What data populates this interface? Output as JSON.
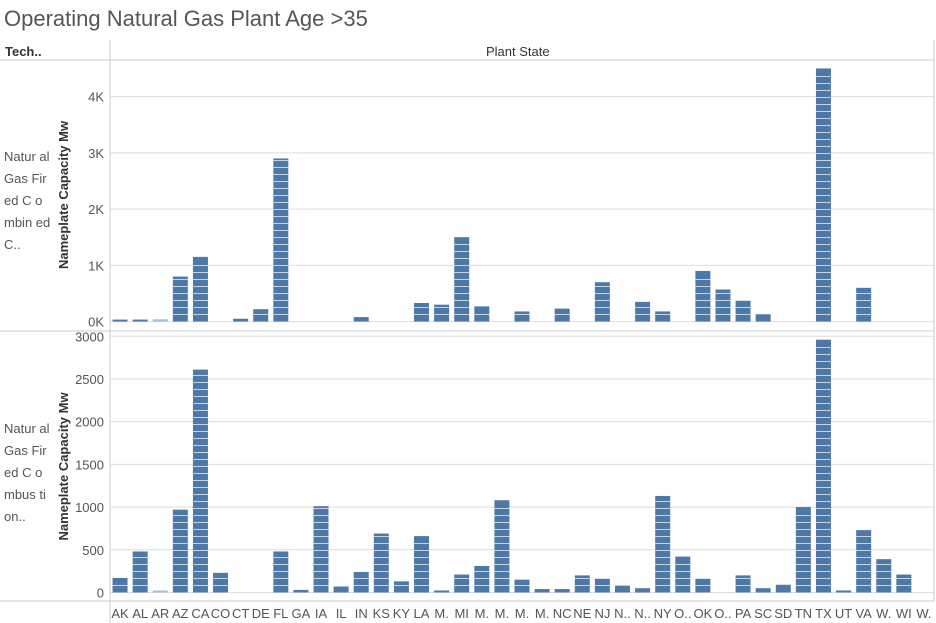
{
  "title": "Operating Natural Gas Plant Age >35",
  "row_header": "Tech..",
  "column_header": "Plant State",
  "chart_data": [
    {
      "type": "bar",
      "technology": "Natural Gas Fired Combined C..",
      "technology_display": "Natur al Gas Fired C ombin ed C..",
      "ylabel": "Nameplate Capacity Mw",
      "ylim": [
        -150,
        4650
      ],
      "yticks": [
        0,
        1000,
        2000,
        3000,
        4000
      ],
      "ytick_labels": [
        "0K",
        "1K",
        "2K",
        "3K",
        "4K"
      ],
      "categories": [
        "AK",
        "AL",
        "AR",
        "AZ",
        "CA",
        "CO",
        "CT",
        "DE",
        "FL",
        "GA",
        "IA",
        "IL",
        "IN",
        "KS",
        "KY",
        "LA",
        "M.",
        "MI",
        "M.",
        "M.",
        "M.",
        "M.",
        "NC",
        "NE",
        "NJ",
        "N..",
        "N..",
        "NY",
        "O..",
        "OK",
        "O..",
        "PA",
        "SC",
        "SD",
        "TN",
        "TX",
        "UT",
        "VA",
        "W.",
        "WI",
        "W."
      ],
      "values": [
        30,
        20,
        40,
        800,
        1150,
        0,
        50,
        220,
        2900,
        0,
        0,
        0,
        80,
        0,
        0,
        330,
        300,
        1500,
        270,
        0,
        180,
        0,
        230,
        0,
        700,
        0,
        350,
        180,
        0,
        900,
        570,
        370,
        130,
        0,
        0,
        4500,
        0,
        600,
        0,
        0,
        0
      ]
    },
    {
      "type": "bar",
      "technology": "Natural Gas Fired Combustion..",
      "technology_display": "Natur al Gas Fired C ombus tion..",
      "ylabel": "Nameplate Capacity Mw",
      "ylim": [
        -100,
        3050
      ],
      "yticks": [
        0,
        500,
        1000,
        1500,
        2000,
        2500,
        3000
      ],
      "ytick_labels": [
        "0",
        "500",
        "1000",
        "1500",
        "2000",
        "2500",
        "3000"
      ],
      "categories": [
        "AK",
        "AL",
        "AR",
        "AZ",
        "CA",
        "CO",
        "CT",
        "DE",
        "FL",
        "GA",
        "IA",
        "IL",
        "IN",
        "KS",
        "KY",
        "LA",
        "M.",
        "MI",
        "M.",
        "M.",
        "M.",
        "M.",
        "NC",
        "NE",
        "NJ",
        "N..",
        "N..",
        "NY",
        "O..",
        "OK",
        "O..",
        "PA",
        "SC",
        "SD",
        "TN",
        "TX",
        "UT",
        "VA",
        "W.",
        "WI",
        "W."
      ],
      "values": [
        170,
        480,
        5,
        970,
        2610,
        230,
        0,
        0,
        480,
        30,
        1010,
        70,
        240,
        690,
        130,
        660,
        10,
        210,
        310,
        1080,
        150,
        40,
        40,
        200,
        160,
        80,
        50,
        1130,
        420,
        160,
        0,
        200,
        50,
        90,
        1000,
        2960,
        20,
        730,
        390,
        210,
        0
      ]
    }
  ],
  "colors": {
    "bar": "#4e79a7",
    "bar_light": "#a9bfd8",
    "grid": "#dddddd",
    "axis": "#999999"
  }
}
